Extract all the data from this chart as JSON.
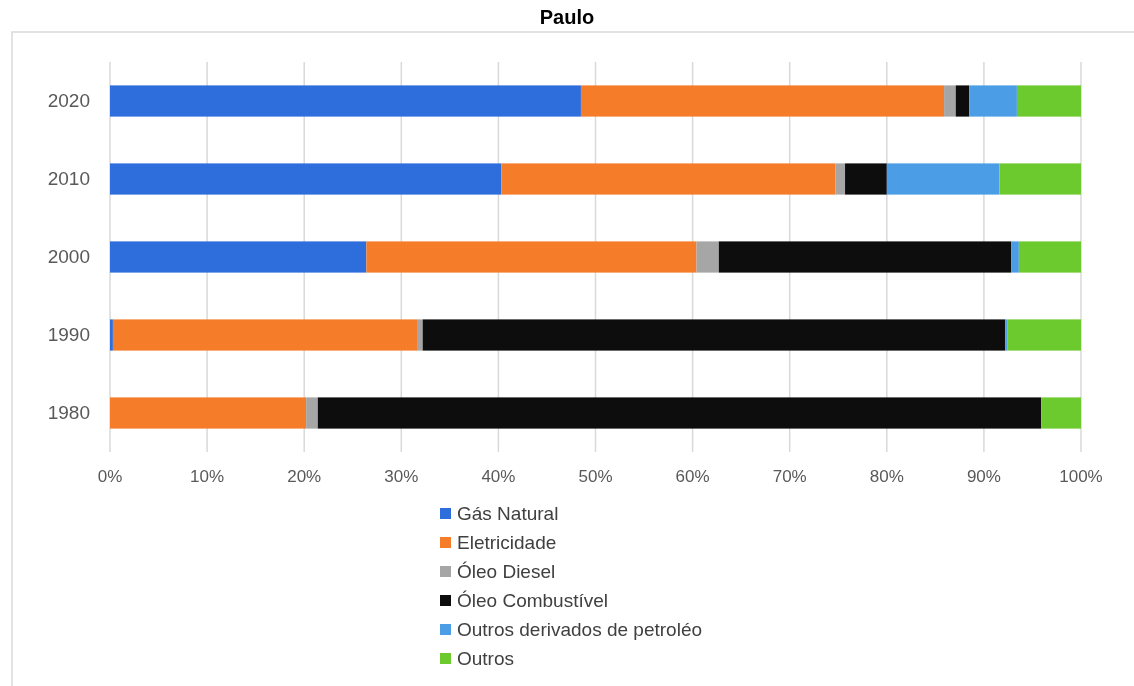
{
  "chart_data": {
    "type": "bar",
    "title": "Paulo",
    "orientation": "horizontal",
    "stacked": true,
    "categories": [
      "2020",
      "2010",
      "2000",
      "1990",
      "1980"
    ],
    "series": [
      {
        "name": "Gás Natural",
        "color": "#2e6ddc",
        "values": [
          48.5,
          40.3,
          26.4,
          0.3,
          0
        ]
      },
      {
        "name": "Eletricidade",
        "color": "#f57c28",
        "values": [
          37.4,
          34.4,
          34.0,
          31.4,
          20.2
        ]
      },
      {
        "name": "Óleo Diesel",
        "color": "#a6a6a6",
        "values": [
          1.2,
          1.0,
          2.3,
          0.5,
          1.2
        ]
      },
      {
        "name": "Óleo Combustível",
        "color": "#0d0d0d",
        "values": [
          1.4,
          4.3,
          30.1,
          60.0,
          74.5
        ]
      },
      {
        "name": "Outros derivados de petroléo",
        "color": "#4b9de6",
        "values": [
          4.9,
          11.6,
          0.8,
          0.2,
          0
        ]
      },
      {
        "name": "Outros",
        "color": "#6cc92e",
        "values": [
          6.6,
          8.4,
          6.4,
          7.6,
          4.1
        ]
      }
    ],
    "xlim": [
      0,
      100
    ],
    "xticks": [
      {
        "value": 0,
        "label": "0%"
      },
      {
        "value": 10,
        "label": "10%"
      },
      {
        "value": 20,
        "label": "20%"
      },
      {
        "value": 30,
        "label": "30%"
      },
      {
        "value": 40,
        "label": "40%"
      },
      {
        "value": 50,
        "label": "50%"
      },
      {
        "value": 60,
        "label": "60%"
      },
      {
        "value": 70,
        "label": "70%"
      },
      {
        "value": 80,
        "label": "80%"
      },
      {
        "value": 90,
        "label": "90%"
      },
      {
        "value": 100,
        "label": "100%"
      }
    ],
    "grid": "x",
    "legend": "bottom"
  }
}
